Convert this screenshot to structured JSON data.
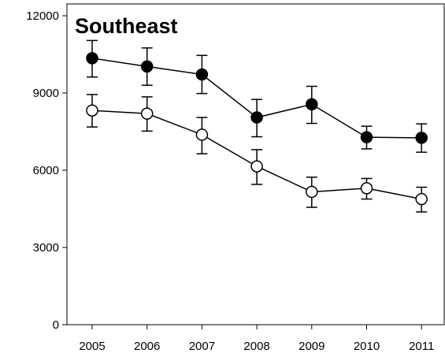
{
  "chart_data": {
    "type": "line",
    "title": "Southeast",
    "xlabel": "",
    "ylabel": "",
    "categories": [
      "2005",
      "2006",
      "2007",
      "2008",
      "2009",
      "2010",
      "2011"
    ],
    "ylim": [
      0,
      12000
    ],
    "yticks": [
      0,
      3000,
      6000,
      9000,
      12000
    ],
    "grid": false,
    "legend": "none",
    "series": [
      {
        "marker": "filled-circle",
        "color": "#000000",
        "values": [
          10350,
          10030,
          9720,
          8050,
          8560,
          7280,
          7260
        ],
        "error_low": [
          9620,
          9300,
          8980,
          7300,
          7820,
          6830,
          6700
        ],
        "error_high": [
          11040,
          10750,
          10460,
          8750,
          9260,
          7710,
          7800
        ]
      },
      {
        "marker": "open-circle",
        "color": "#000000",
        "values": [
          8320,
          8200,
          7380,
          6150,
          5160,
          5300,
          4880
        ],
        "error_low": [
          7680,
          7520,
          6640,
          5450,
          4560,
          4880,
          4380
        ],
        "error_high": [
          8940,
          8850,
          8050,
          6800,
          5730,
          5680,
          5340
        ]
      }
    ]
  }
}
